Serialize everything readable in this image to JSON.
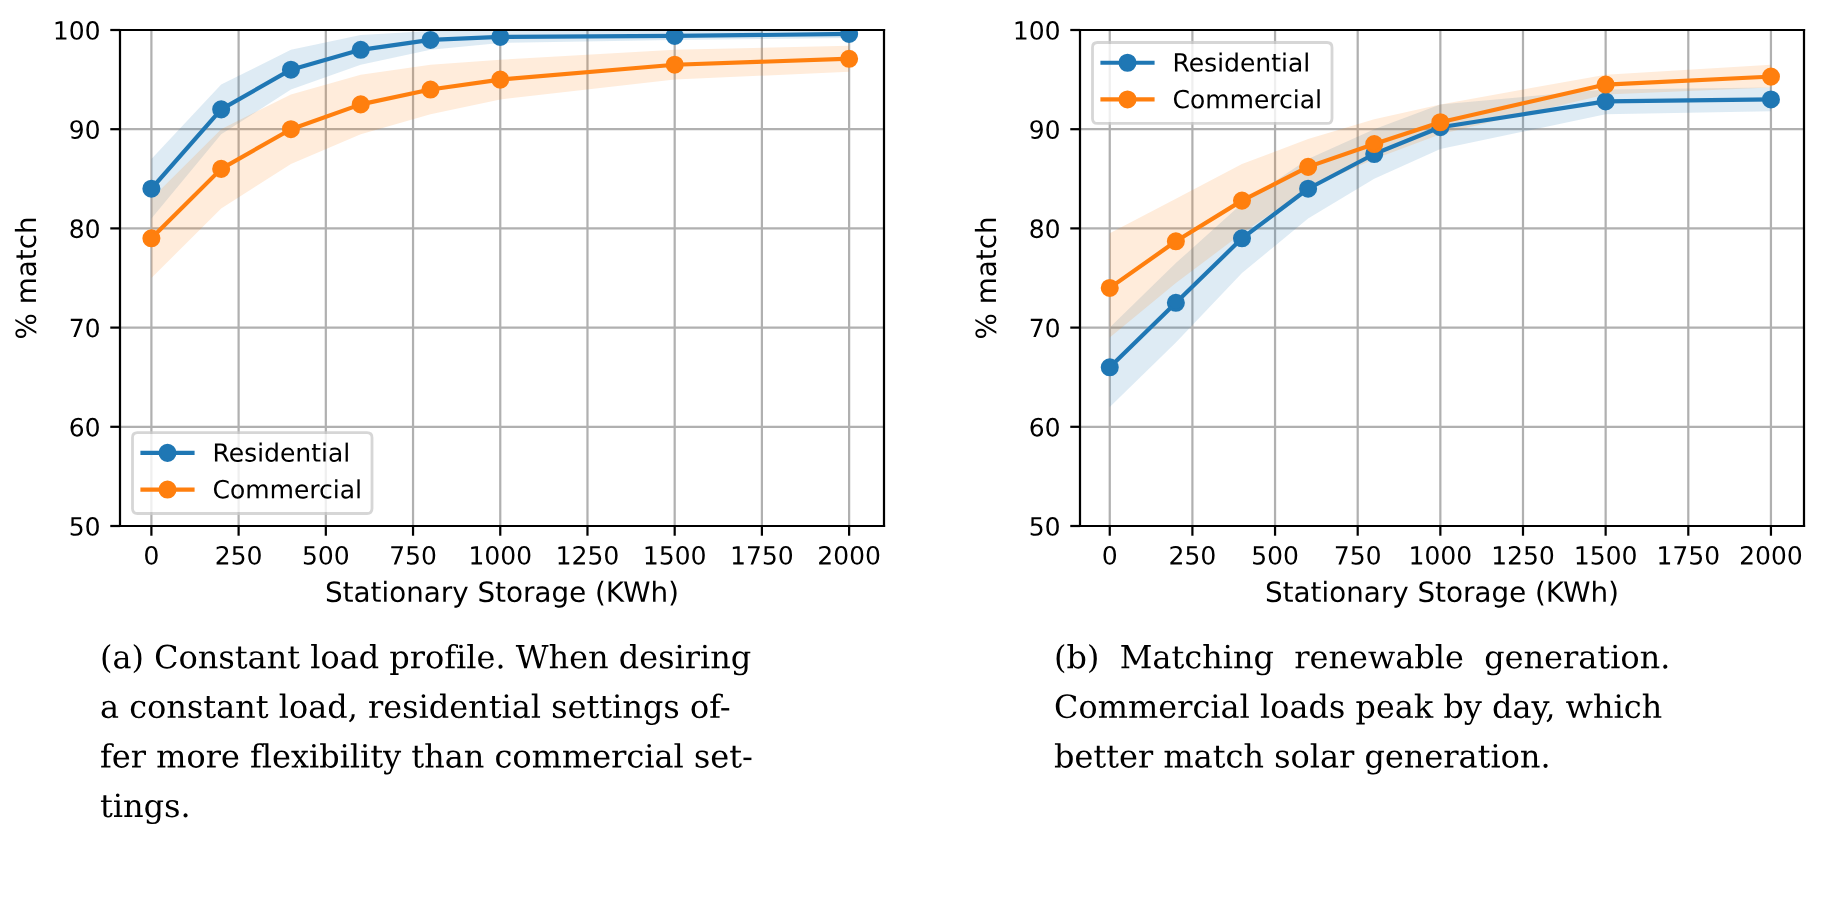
{
  "chart_data": [
    {
      "type": "line",
      "xlabel": "Stationary Storage (KWh)",
      "ylabel": "% match",
      "x": [
        0,
        200,
        400,
        600,
        800,
        1000,
        1500,
        2000
      ],
      "series": [
        {
          "name": "Residential",
          "color": "#1f77b4",
          "values": [
            84,
            92,
            96,
            98,
            99,
            99.3,
            99.4,
            99.6
          ],
          "lower": [
            81,
            89.5,
            94,
            96.5,
            98,
            98.7,
            99,
            99.2
          ],
          "upper": [
            87,
            94.5,
            98,
            99.5,
            99.9,
            99.9,
            99.9,
            99.9
          ]
        },
        {
          "name": "Commercial",
          "color": "#ff7f0e",
          "values": [
            79,
            86,
            90,
            92.5,
            94,
            95,
            96.5,
            97.1
          ],
          "lower": [
            75,
            82,
            86.5,
            89.5,
            91.5,
            93,
            95,
            95.8
          ],
          "upper": [
            83,
            90,
            93.5,
            95.5,
            96.5,
            97,
            98,
            98.4
          ]
        }
      ],
      "xlim": [
        -90,
        2100
      ],
      "ylim": [
        50,
        100
      ],
      "xticks": [
        0,
        250,
        500,
        750,
        1000,
        1250,
        1500,
        1750,
        2000
      ],
      "yticks": [
        50,
        60,
        70,
        80,
        90,
        100
      ],
      "grid": true,
      "legend": "bottom left",
      "marker": "circle",
      "line_style": "solid",
      "annotations": [
        "(a) Constant load profile. When desiring\na constant load, residential settings of-\nfer more flexibility than commercial set-\ntings."
      ]
    },
    {
      "type": "line",
      "xlabel": "Stationary Storage (KWh)",
      "ylabel": "% match",
      "x": [
        0,
        200,
        400,
        600,
        800,
        1000,
        1500,
        2000
      ],
      "series": [
        {
          "name": "Residential",
          "color": "#1f77b4",
          "values": [
            66,
            72.5,
            79,
            84,
            87.5,
            90.2,
            92.8,
            93
          ],
          "lower": [
            62,
            68.5,
            75.5,
            81,
            85,
            88,
            91.5,
            91.8
          ],
          "upper": [
            70,
            76.5,
            82.5,
            87,
            90,
            92.5,
            94,
            94.2
          ]
        },
        {
          "name": "Commercial",
          "color": "#ff7f0e",
          "values": [
            74,
            78.7,
            82.8,
            86.2,
            88.5,
            90.7,
            94.5,
            95.3
          ],
          "lower": [
            69,
            74.5,
            79.5,
            84,
            87,
            89.5,
            93.5,
            94.2
          ],
          "upper": [
            79.5,
            83,
            86.5,
            89,
            91,
            92.5,
            95.5,
            96.5
          ]
        }
      ],
      "xlim": [
        -90,
        2100
      ],
      "ylim": [
        50,
        100
      ],
      "xticks": [
        0,
        250,
        500,
        750,
        1000,
        1250,
        1500,
        1750,
        2000
      ],
      "yticks": [
        50,
        60,
        70,
        80,
        90,
        100
      ],
      "grid": true,
      "legend": "top left",
      "marker": "circle",
      "line_style": "solid",
      "annotations": [
        "(b)  Matching  renewable  generation.\nCommercial loads peak by day, which\nbetter match solar generation."
      ]
    }
  ]
}
